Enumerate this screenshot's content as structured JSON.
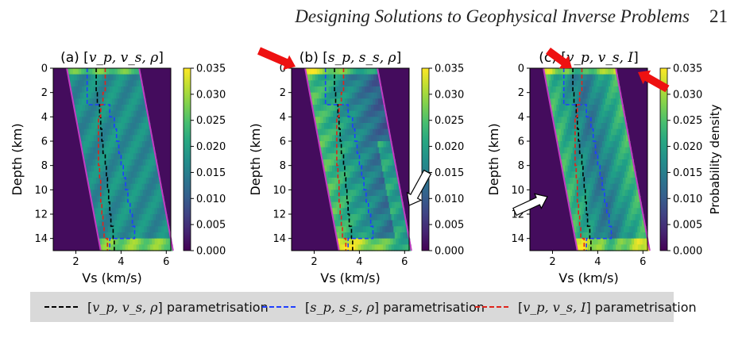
{
  "page_header": {
    "title": "Designing Solutions to Geophysical Inverse Problems",
    "page_number": "21"
  },
  "colors": {
    "black": "#000000",
    "blue": "#1f3fff",
    "red": "#e0241b",
    "magenta": "#c33cc3",
    "arrow_red": "#ee1111",
    "arrow_white": "#ffffff",
    "viridis": [
      "#440154",
      "#46337e",
      "#365c8d",
      "#277f8e",
      "#1fa187",
      "#4ac16d",
      "#a0da39",
      "#fde725"
    ]
  },
  "shared_axes": {
    "xlabel": "Vs (km/s)",
    "ylabel": "Depth (km)",
    "xticks": [
      "2",
      "4",
      "6"
    ],
    "yticks": [
      "0",
      "2",
      "4",
      "6",
      "8",
      "10",
      "12",
      "14"
    ],
    "xlim": [
      1,
      6.2
    ],
    "ylim": [
      15,
      0
    ]
  },
  "colorbar": {
    "ticks": [
      "0.035",
      "0.030",
      "0.025",
      "0.020",
      "0.015",
      "0.010",
      "0.005",
      "0.000"
    ],
    "label": "Probability density",
    "range": [
      0,
      0.035
    ]
  },
  "panels": [
    {
      "title_prefix": "(a) [",
      "title_params": "v_p, v_s, ρ",
      "title_suffix": "]",
      "highlight": "none"
    },
    {
      "title_prefix": "(b) [",
      "title_params": "s_p, s_s, ρ",
      "title_suffix": "]",
      "highlight": "bright"
    },
    {
      "title_prefix": "(c) [",
      "title_params": "v_p, v_s, I",
      "title_suffix": "]",
      "highlight": "edge"
    }
  ],
  "chart_data": [
    {
      "type": "heatmap",
      "title": "(a) [v_p, v_s, ρ]",
      "xlabel": "Vs (km/s)",
      "ylabel": "Depth (km)",
      "xlim": [
        1,
        6.2
      ],
      "ylim": [
        15,
        0
      ],
      "colorbar_range": [
        0,
        0.035
      ],
      "series": [
        {
          "name": "[v_p, v_s, ρ] parametrisation",
          "color": "#000000",
          "x": [
            2.9,
            2.9,
            2.95,
            3.05,
            3.1,
            3.15,
            3.2,
            3.3,
            3.35,
            3.4,
            3.45,
            3.5,
            3.55,
            3.65,
            3.7,
            3.7
          ],
          "y": [
            0,
            1,
            2,
            3,
            4,
            5,
            6,
            7,
            8,
            9,
            10,
            11,
            12,
            13,
            14,
            15
          ]
        },
        {
          "name": "[s_p, s_s, ρ] parametrisation",
          "color": "#1f3fff",
          "x": [
            2.5,
            2.5,
            2.5,
            3.5,
            3.7,
            3.8,
            3.9,
            4.0,
            4.1,
            4.2,
            4.3,
            4.4,
            4.5,
            4.6,
            3.5,
            3.5
          ],
          "y": [
            0,
            1,
            2,
            3,
            4,
            5,
            6,
            7,
            8,
            9,
            10,
            11,
            12,
            13,
            14,
            15
          ]
        },
        {
          "name": "[v_p, v_s, I] parametrisation",
          "color": "#e0241b",
          "x": [
            3.3,
            3.3,
            3.2,
            3.1,
            3.0,
            3.0,
            3.0,
            3.0,
            3.05,
            3.1,
            3.1,
            3.15,
            3.2,
            3.25,
            3.4,
            3.4
          ],
          "y": [
            0,
            1,
            2,
            3,
            4,
            5,
            6,
            7,
            8,
            9,
            10,
            11,
            12,
            13,
            14,
            15
          ]
        }
      ]
    },
    {
      "type": "heatmap",
      "title": "(b) [s_p, s_s, ρ]",
      "xlabel": "Vs (km/s)",
      "ylabel": "Depth (km)",
      "xlim": [
        1,
        6.2
      ],
      "ylim": [
        15,
        0
      ],
      "colorbar_range": [
        0,
        0.035
      ],
      "series": [
        {
          "name": "[v_p, v_s, ρ] parametrisation",
          "color": "#000000",
          "x": [
            2.9,
            2.9,
            2.95,
            3.05,
            3.1,
            3.15,
            3.2,
            3.3,
            3.35,
            3.4,
            3.45,
            3.5,
            3.55,
            3.65,
            3.7,
            3.7
          ],
          "y": [
            0,
            1,
            2,
            3,
            4,
            5,
            6,
            7,
            8,
            9,
            10,
            11,
            12,
            13,
            14,
            15
          ]
        },
        {
          "name": "[s_p, s_s, ρ] parametrisation",
          "color": "#1f3fff",
          "x": [
            2.5,
            2.5,
            2.5,
            3.5,
            3.7,
            3.8,
            3.9,
            4.0,
            4.1,
            4.2,
            4.3,
            4.4,
            4.5,
            4.6,
            3.5,
            3.5
          ],
          "y": [
            0,
            1,
            2,
            3,
            4,
            5,
            6,
            7,
            8,
            9,
            10,
            11,
            12,
            13,
            14,
            15
          ]
        },
        {
          "name": "[v_p, v_s, I] parametrisation",
          "color": "#e0241b",
          "x": [
            3.3,
            3.3,
            3.2,
            3.1,
            3.0,
            3.0,
            3.0,
            3.0,
            3.05,
            3.1,
            3.1,
            3.15,
            3.2,
            3.25,
            3.4,
            3.4
          ],
          "y": [
            0,
            1,
            2,
            3,
            4,
            5,
            6,
            7,
            8,
            9,
            10,
            11,
            12,
            13,
            14,
            15
          ]
        }
      ]
    },
    {
      "type": "heatmap",
      "title": "(c) [v_p, v_s, I]",
      "xlabel": "Vs (km/s)",
      "ylabel": "Depth (km)",
      "xlim": [
        1,
        6.2
      ],
      "ylim": [
        15,
        0
      ],
      "colorbar_range": [
        0,
        0.035
      ],
      "colorbar_label": "Probability density",
      "series": [
        {
          "name": "[v_p, v_s, ρ] parametrisation",
          "color": "#000000",
          "x": [
            2.9,
            2.9,
            2.95,
            3.05,
            3.1,
            3.15,
            3.2,
            3.3,
            3.35,
            3.4,
            3.45,
            3.5,
            3.55,
            3.65,
            3.7,
            3.7
          ],
          "y": [
            0,
            1,
            2,
            3,
            4,
            5,
            6,
            7,
            8,
            9,
            10,
            11,
            12,
            13,
            14,
            15
          ]
        },
        {
          "name": "[s_p, s_s, ρ] parametrisation",
          "color": "#1f3fff",
          "x": [
            2.5,
            2.5,
            2.5,
            3.5,
            3.7,
            3.8,
            3.9,
            4.0,
            4.1,
            4.2,
            4.3,
            4.4,
            4.5,
            4.6,
            3.5,
            3.5
          ],
          "y": [
            0,
            1,
            2,
            3,
            4,
            5,
            6,
            7,
            8,
            9,
            10,
            11,
            12,
            13,
            14,
            15
          ]
        },
        {
          "name": "[v_p, v_s, I] parametrisation",
          "color": "#e0241b",
          "x": [
            3.3,
            3.3,
            3.2,
            3.1,
            3.0,
            3.0,
            3.0,
            3.0,
            3.05,
            3.1,
            3.1,
            3.15,
            3.2,
            3.25,
            3.4,
            3.4
          ],
          "y": [
            0,
            1,
            2,
            3,
            4,
            5,
            6,
            7,
            8,
            9,
            10,
            11,
            12,
            13,
            14,
            15
          ]
        }
      ]
    }
  ],
  "legend": [
    {
      "prefix": "[",
      "params": "v_p, v_s, ρ",
      "suffix": "] parametrisation",
      "color": "#000000"
    },
    {
      "prefix": "[",
      "params": "s_p, s_s, ρ",
      "suffix": "] parametrisation",
      "color": "#1f3fff"
    },
    {
      "prefix": "[",
      "params": "v_p, v_s, I",
      "suffix": "] parametrisation",
      "color": "#e0241b"
    }
  ]
}
